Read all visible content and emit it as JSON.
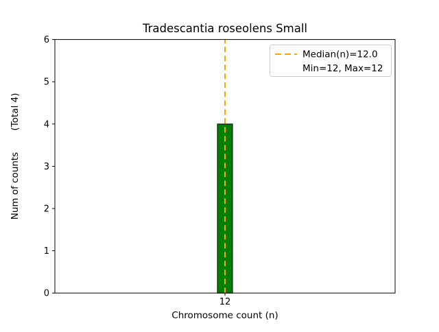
{
  "chart_data": {
    "type": "bar",
    "title": "Tradescantia roseolens Small",
    "xlabel": "Chromosome count (n)",
    "ylabel": "Num of counts",
    "ylabel_total": "(Total 4)",
    "categories": [
      "12"
    ],
    "values": [
      4
    ],
    "total_counts": 4,
    "ylim": [
      0,
      6
    ],
    "yticks": [
      0,
      1,
      2,
      3,
      4,
      5,
      6
    ],
    "grid": false,
    "bar_color": "#008000",
    "bar_edge_color": "#000000",
    "median": {
      "value": 12.0,
      "color": "#FFA500",
      "style": "dashed"
    },
    "min": 12,
    "max": 12,
    "legend": {
      "position": "upper right",
      "line1": "Median(n)=12.0",
      "line2": "Min=12, Max=12"
    }
  }
}
